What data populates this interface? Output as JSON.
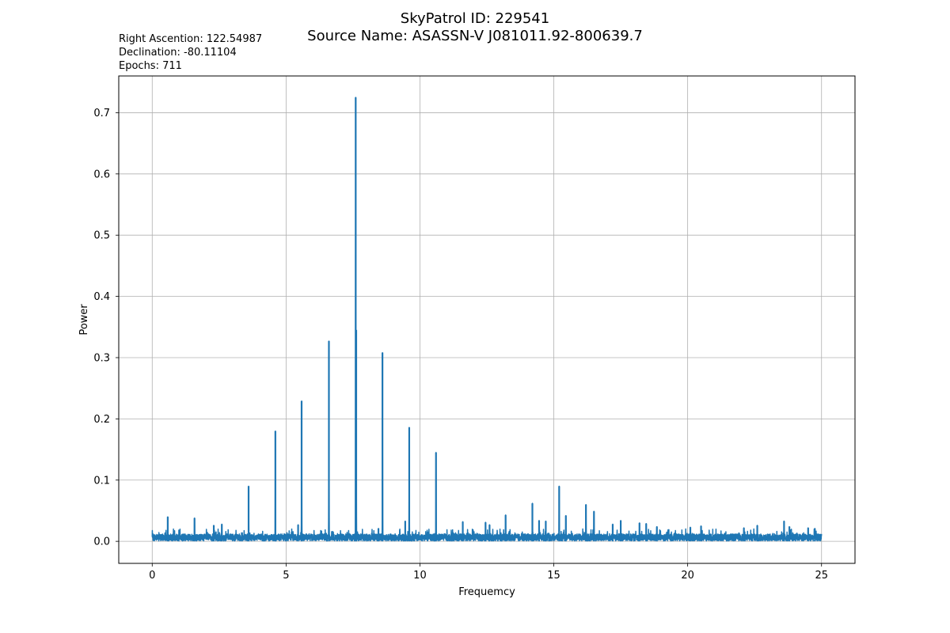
{
  "title": {
    "line1": "SkyPatrol ID: 229541",
    "line2": "Source Name: ASASSN-V J081011.92-800639.7"
  },
  "metadata": {
    "right_ascension": "Right Ascention: 122.54987",
    "declination": "Declination: -80.11104",
    "epochs": "Epochs: 711"
  },
  "chart_data": {
    "type": "line",
    "xlabel": "Frequemcy",
    "ylabel": "Power",
    "xlim": [
      -1.25,
      26.25
    ],
    "ylim": [
      -0.036,
      0.76
    ],
    "x_ticks": [
      0,
      5,
      10,
      15,
      20,
      25
    ],
    "y_ticks": [
      0.0,
      0.1,
      0.2,
      0.3,
      0.4,
      0.5,
      0.6,
      0.7
    ],
    "x_tick_labels": [
      "0",
      "5",
      "10",
      "15",
      "20",
      "25"
    ],
    "y_tick_labels": [
      "0.0",
      "0.1",
      "0.2",
      "0.3",
      "0.4",
      "0.5",
      "0.6",
      "0.7"
    ],
    "grid": true,
    "line_color": "#1f77b4",
    "noise_floor": 0.012,
    "frequency_range": [
      0,
      25
    ],
    "peaks": [
      {
        "x": 0.58,
        "y": 0.04
      },
      {
        "x": 1.58,
        "y": 0.038
      },
      {
        "x": 2.3,
        "y": 0.026
      },
      {
        "x": 2.6,
        "y": 0.028
      },
      {
        "x": 3.6,
        "y": 0.09
      },
      {
        "x": 4.6,
        "y": 0.18
      },
      {
        "x": 5.45,
        "y": 0.027
      },
      {
        "x": 5.58,
        "y": 0.229
      },
      {
        "x": 6.6,
        "y": 0.327
      },
      {
        "x": 7.6,
        "y": 0.725
      },
      {
        "x": 7.62,
        "y": 0.345
      },
      {
        "x": 8.45,
        "y": 0.021
      },
      {
        "x": 8.6,
        "y": 0.308
      },
      {
        "x": 9.45,
        "y": 0.033
      },
      {
        "x": 9.6,
        "y": 0.186
      },
      {
        "x": 10.6,
        "y": 0.145
      },
      {
        "x": 11.6,
        "y": 0.032
      },
      {
        "x": 12.45,
        "y": 0.031
      },
      {
        "x": 12.6,
        "y": 0.027
      },
      {
        "x": 13.2,
        "y": 0.043
      },
      {
        "x": 14.2,
        "y": 0.062
      },
      {
        "x": 14.45,
        "y": 0.034
      },
      {
        "x": 14.7,
        "y": 0.033
      },
      {
        "x": 15.2,
        "y": 0.09
      },
      {
        "x": 15.45,
        "y": 0.042
      },
      {
        "x": 16.2,
        "y": 0.06
      },
      {
        "x": 16.5,
        "y": 0.049
      },
      {
        "x": 17.2,
        "y": 0.028
      },
      {
        "x": 17.5,
        "y": 0.034
      },
      {
        "x": 18.2,
        "y": 0.03
      },
      {
        "x": 18.45,
        "y": 0.029
      },
      {
        "x": 18.85,
        "y": 0.024
      },
      {
        "x": 20.1,
        "y": 0.023
      },
      {
        "x": 20.5,
        "y": 0.025
      },
      {
        "x": 22.1,
        "y": 0.022
      },
      {
        "x": 22.6,
        "y": 0.026
      },
      {
        "x": 23.6,
        "y": 0.033
      },
      {
        "x": 23.8,
        "y": 0.024
      },
      {
        "x": 24.5,
        "y": 0.022
      },
      {
        "x": 24.75,
        "y": 0.021
      }
    ]
  }
}
